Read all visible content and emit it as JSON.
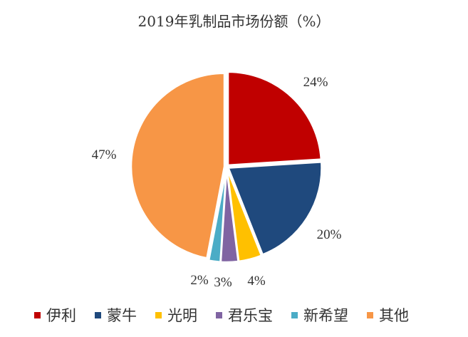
{
  "chart_data": {
    "type": "pie",
    "title": "2019年乳制品市场份额（%）",
    "categories": [
      "伊利",
      "蒙牛",
      "光明",
      "君乐宝",
      "新希望",
      "其他"
    ],
    "values": [
      24,
      20,
      4,
      3,
      2,
      47
    ],
    "data_labels": [
      "24%",
      "20%",
      "4%",
      "3%",
      "2%",
      "47%"
    ],
    "colors": [
      "#C00000",
      "#1F497D",
      "#FFC000",
      "#8064A2",
      "#4BACC6",
      "#F79646"
    ],
    "start_angle": "12 o'clock, clockwise",
    "legend": "bottom"
  }
}
